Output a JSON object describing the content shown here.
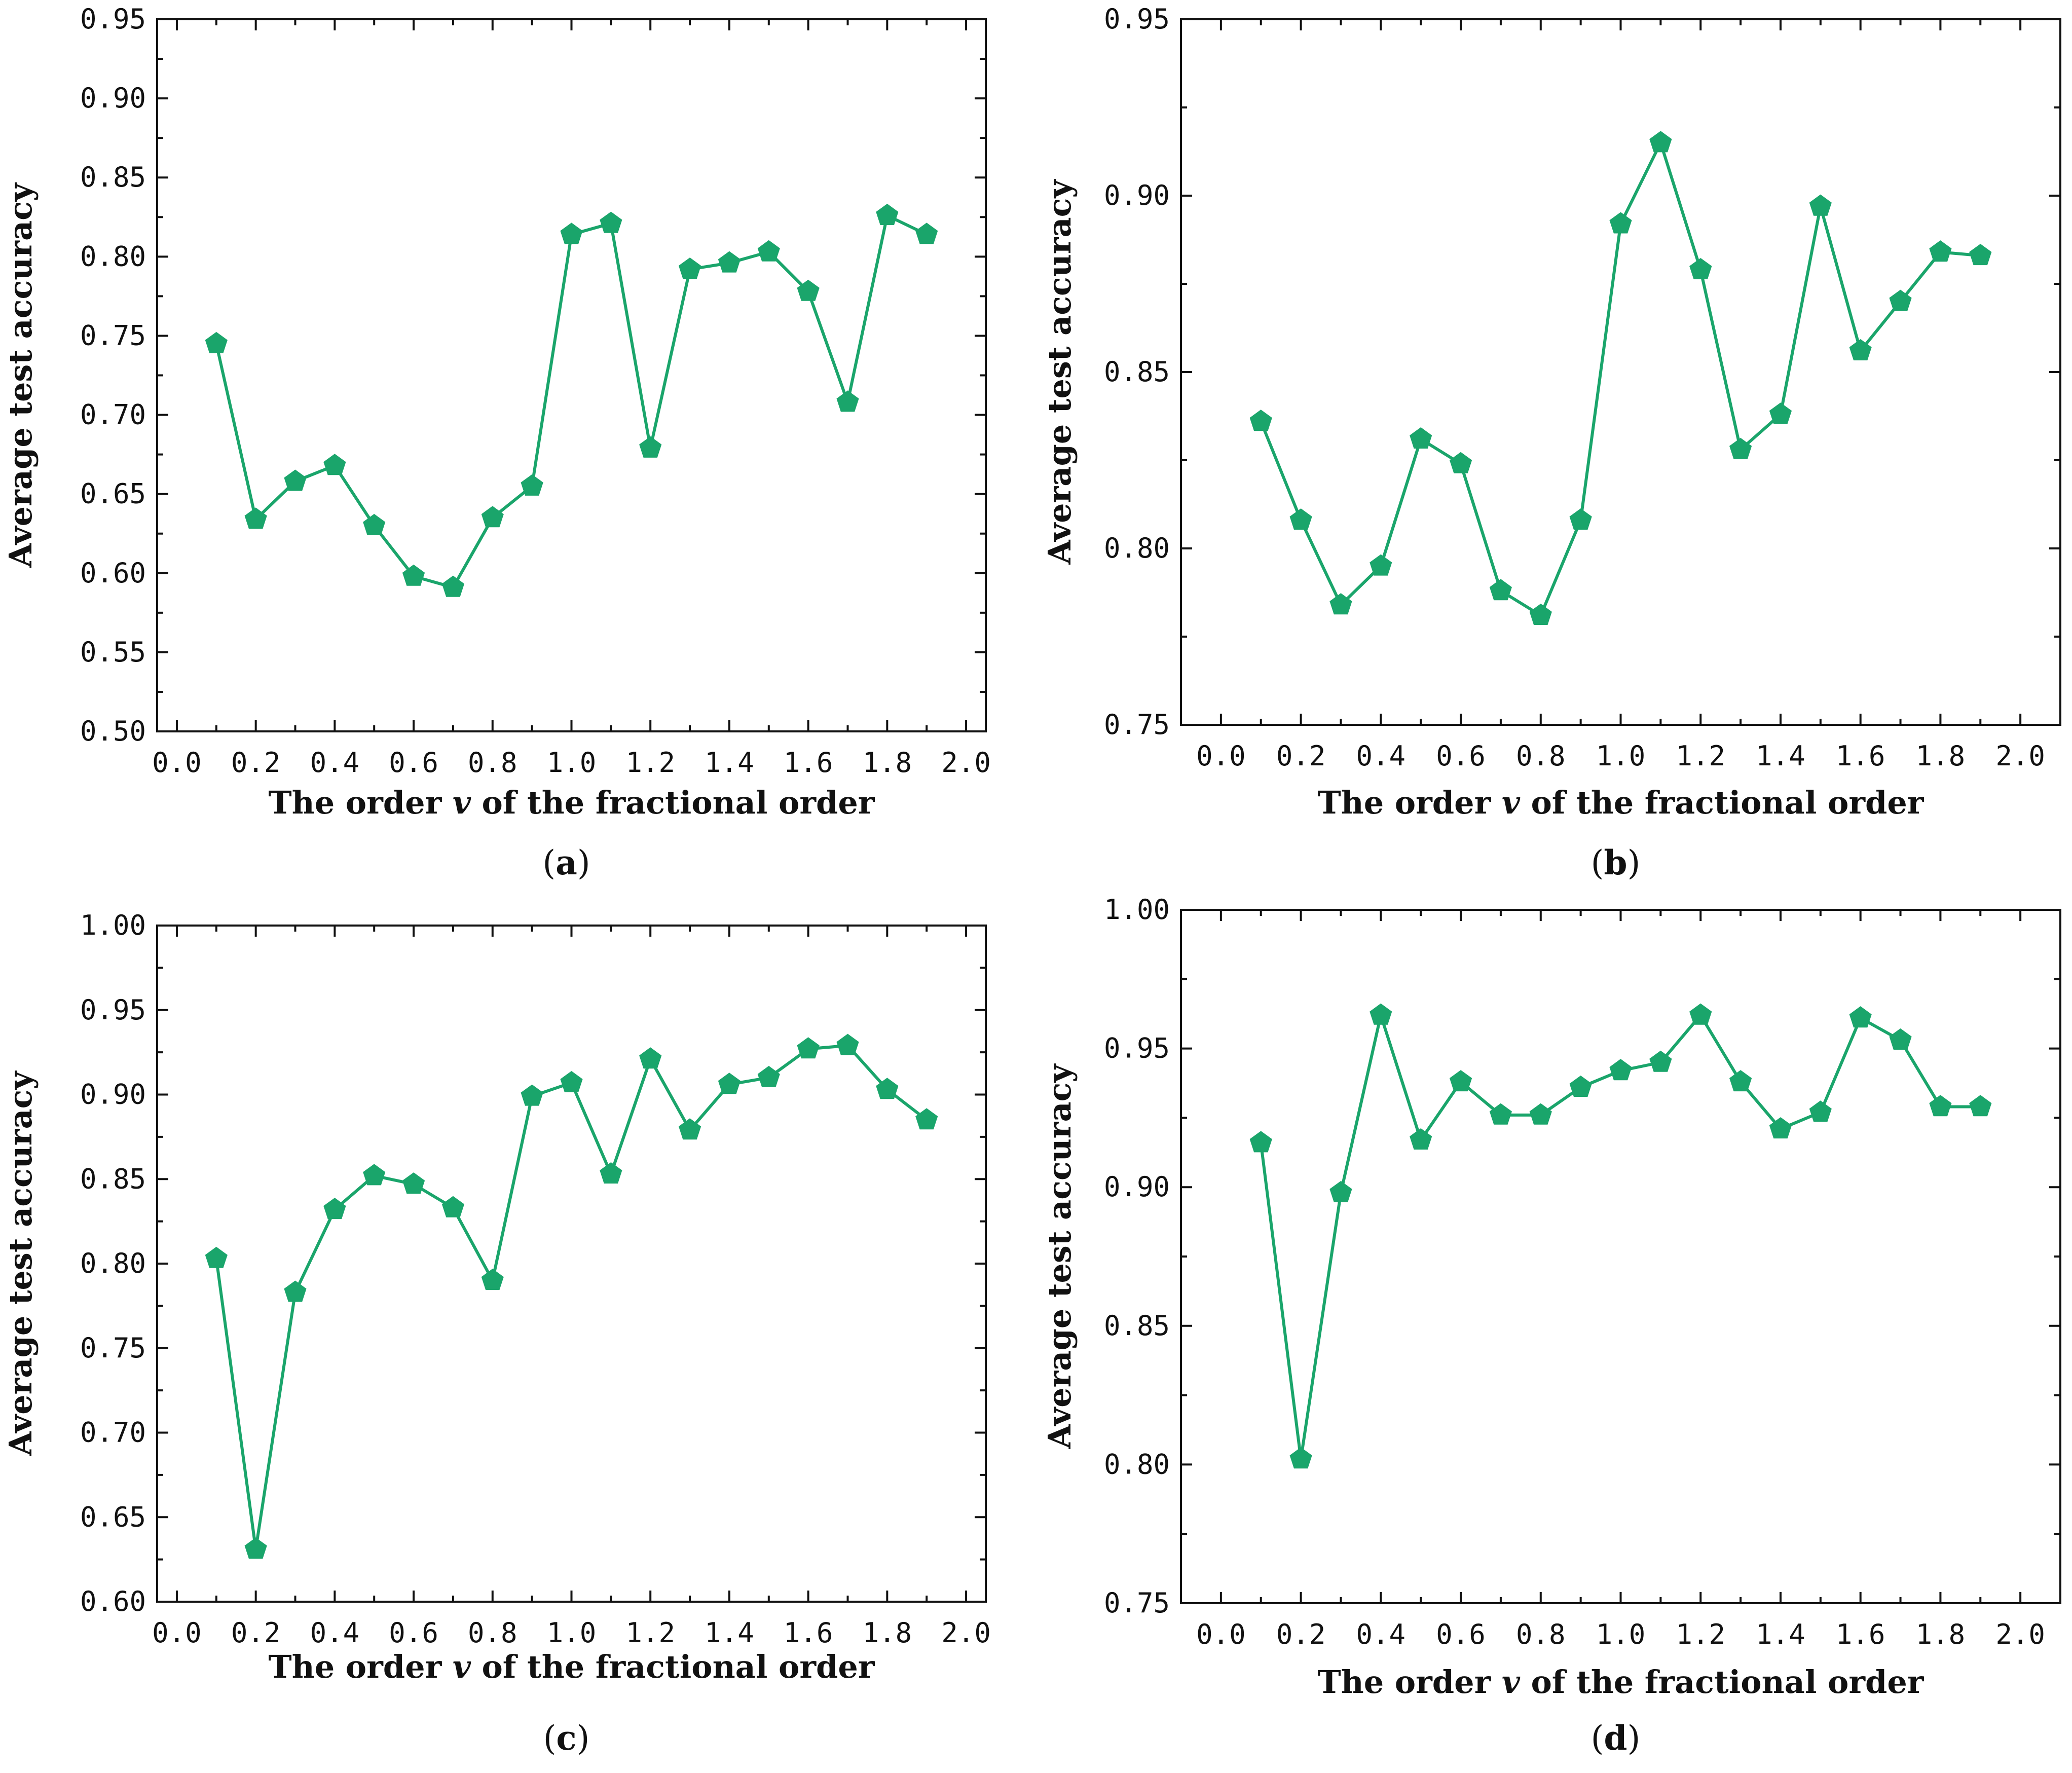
{
  "colors": {
    "series": "#1aa56b",
    "axis": "#111111"
  },
  "chart_data": [
    {
      "panel": "a",
      "caption_letter": "a",
      "type": "line",
      "marker": "pentagon",
      "xlabel_before": "The order ",
      "xlabel_var": "v",
      "xlabel_after": " of the fractional order",
      "ylabel": "Average test accuracy",
      "xlim": [
        -0.05,
        2.05
      ],
      "ylim": [
        0.5,
        0.95
      ],
      "xticks": [
        "0.0",
        "0.2",
        "0.4",
        "0.6",
        "0.8",
        "1.0",
        "1.2",
        "1.4",
        "1.6",
        "1.8",
        "2.0"
      ],
      "yticks": [
        "0.50",
        "0.55",
        "0.60",
        "0.65",
        "0.70",
        "0.75",
        "0.80",
        "0.85",
        "0.90",
        "0.95"
      ],
      "x": [
        0.1,
        0.2,
        0.3,
        0.4,
        0.5,
        0.6,
        0.7,
        0.8,
        0.9,
        1.0,
        1.1,
        1.2,
        1.3,
        1.4,
        1.5,
        1.6,
        1.7,
        1.8,
        1.9
      ],
      "y": [
        0.745,
        0.634,
        0.658,
        0.668,
        0.63,
        0.598,
        0.591,
        0.635,
        0.655,
        0.814,
        0.821,
        0.679,
        0.792,
        0.796,
        0.803,
        0.778,
        0.708,
        0.826,
        0.814
      ]
    },
    {
      "panel": "b",
      "caption_letter": "b",
      "type": "line",
      "marker": "pentagon",
      "xlabel_before": "The order ",
      "xlabel_var": "v",
      "xlabel_after": " of the fractional order",
      "ylabel": "Average test accuracy",
      "xlim": [
        -0.1,
        2.1
      ],
      "ylim": [
        0.75,
        0.95
      ],
      "xticks": [
        "0.0",
        "0.2",
        "0.4",
        "0.6",
        "0.8",
        "1.0",
        "1.2",
        "1.4",
        "1.6",
        "1.8",
        "2.0"
      ],
      "yticks": [
        "0.75",
        "0.80",
        "0.85",
        "0.90",
        "0.95"
      ],
      "x": [
        0.1,
        0.2,
        0.3,
        0.4,
        0.5,
        0.6,
        0.7,
        0.8,
        0.9,
        1.0,
        1.1,
        1.2,
        1.3,
        1.4,
        1.5,
        1.6,
        1.7,
        1.8,
        1.9
      ],
      "y": [
        0.836,
        0.808,
        0.784,
        0.795,
        0.831,
        0.824,
        0.788,
        0.781,
        0.808,
        0.892,
        0.915,
        0.879,
        0.828,
        0.838,
        0.897,
        0.856,
        0.87,
        0.884,
        0.883
      ]
    },
    {
      "panel": "c",
      "caption_letter": "c",
      "type": "line",
      "marker": "pentagon",
      "xlabel_before": "The order ",
      "xlabel_var": "v",
      "xlabel_after": " of the fractional order",
      "ylabel": "Average test accuracy",
      "xlim": [
        -0.05,
        2.05
      ],
      "ylim": [
        0.6,
        1.0
      ],
      "xticks": [
        "0.0",
        "0.2",
        "0.4",
        "0.6",
        "0.8",
        "1.0",
        "1.2",
        "1.4",
        "1.6",
        "1.8",
        "2.0"
      ],
      "yticks": [
        "0.60",
        "0.65",
        "0.70",
        "0.75",
        "0.80",
        "0.85",
        "0.90",
        "0.95",
        "1.00"
      ],
      "x": [
        0.1,
        0.2,
        0.3,
        0.4,
        0.5,
        0.6,
        0.7,
        0.8,
        0.9,
        1.0,
        1.1,
        1.2,
        1.3,
        1.4,
        1.5,
        1.6,
        1.7,
        1.8,
        1.9
      ],
      "y": [
        0.803,
        0.631,
        0.783,
        0.832,
        0.852,
        0.847,
        0.833,
        0.79,
        0.899,
        0.907,
        0.853,
        0.921,
        0.879,
        0.906,
        0.91,
        0.927,
        0.929,
        0.903,
        0.885
      ]
    },
    {
      "panel": "d",
      "caption_letter": "d",
      "type": "line",
      "marker": "pentagon",
      "xlabel_before": "The order ",
      "xlabel_var": "v",
      "xlabel_after": " of the fractional order",
      "ylabel": "Average test accuracy",
      "xlim": [
        -0.1,
        2.1
      ],
      "ylim": [
        0.75,
        1.0
      ],
      "xticks": [
        "0.0",
        "0.2",
        "0.4",
        "0.6",
        "0.8",
        "1.0",
        "1.2",
        "1.4",
        "1.6",
        "1.8",
        "2.0"
      ],
      "yticks": [
        "0.75",
        "0.80",
        "0.85",
        "0.90",
        "0.95",
        "1.00"
      ],
      "x": [
        0.1,
        0.2,
        0.3,
        0.4,
        0.5,
        0.6,
        0.7,
        0.8,
        0.9,
        1.0,
        1.1,
        1.2,
        1.3,
        1.4,
        1.5,
        1.6,
        1.7,
        1.8,
        1.9
      ],
      "y": [
        0.916,
        0.802,
        0.898,
        0.962,
        0.917,
        0.938,
        0.926,
        0.926,
        0.936,
        0.942,
        0.945,
        0.962,
        0.938,
        0.921,
        0.927,
        0.961,
        0.953,
        0.929,
        0.929
      ]
    }
  ]
}
